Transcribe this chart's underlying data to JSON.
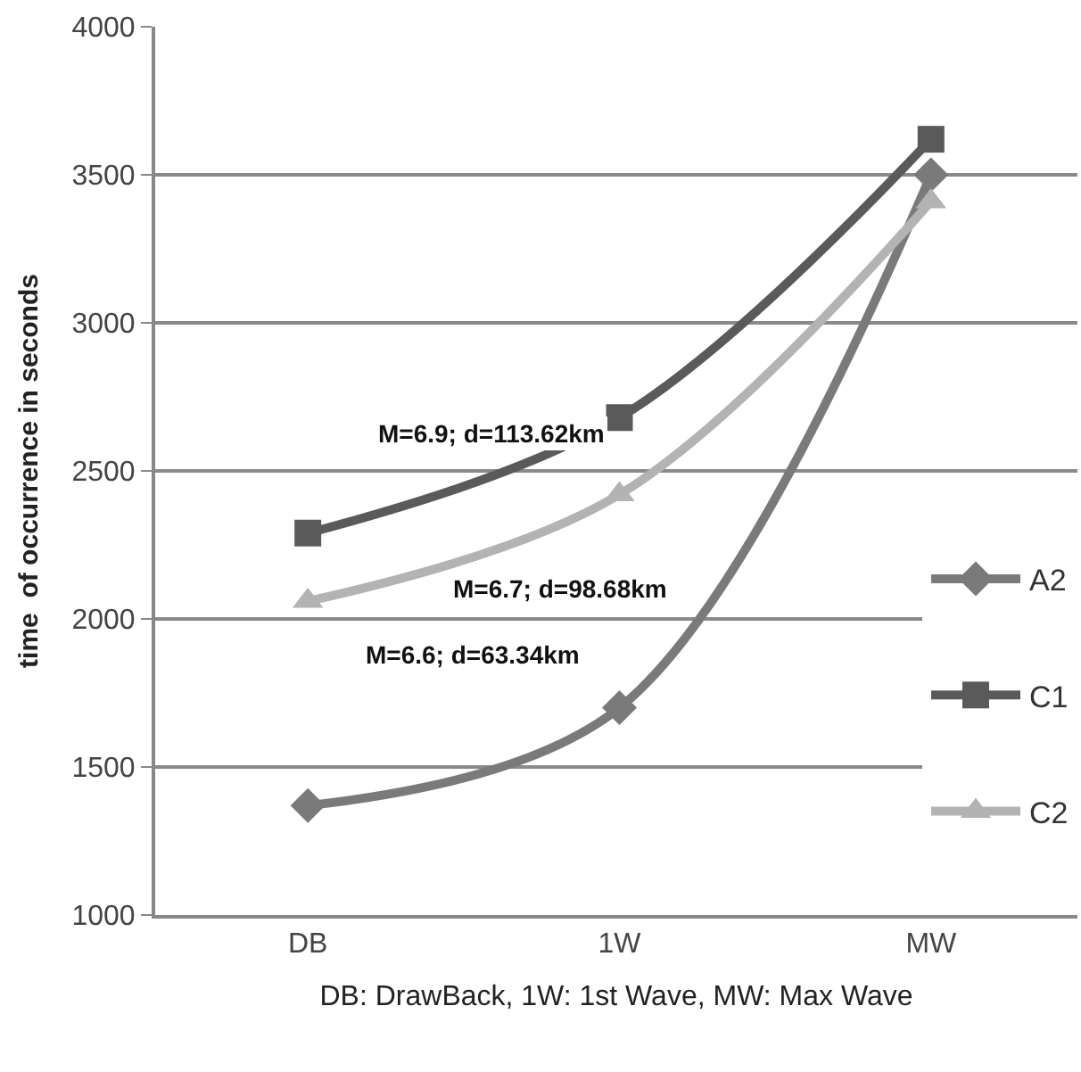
{
  "chart_data": {
    "type": "line",
    "xlabel": "DB: DrawBack, 1W: 1st Wave, MW: Max Wave",
    "ylabel": "time  of occurrence in seconds",
    "categories": [
      "DB",
      "1W",
      "MW"
    ],
    "series": [
      {
        "name": "A2",
        "color": "#7a7a7a",
        "marker": "diamond",
        "values": [
          1370,
          1700,
          3500
        ]
      },
      {
        "name": "C1",
        "color": "#5a5a5a",
        "marker": "square",
        "values": [
          2290,
          2680,
          3620
        ]
      },
      {
        "name": "C2",
        "color": "#b3b3b3",
        "marker": "triangle",
        "values": [
          2060,
          2420,
          3410
        ]
      }
    ],
    "ylim": [
      1000,
      4000
    ],
    "yticks": [
      1000,
      1500,
      2000,
      2500,
      3000,
      3500,
      4000
    ],
    "grid": "y",
    "legend": "right",
    "annotations": [
      "M=6.9; d=113.62km",
      "M=6.7; d=98.68km",
      "M=6.6; d=63.34km"
    ]
  }
}
